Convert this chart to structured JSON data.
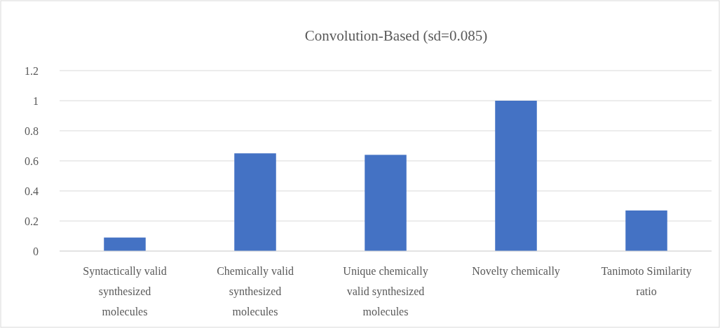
{
  "chart_data": {
    "type": "bar",
    "title": "Convolution-Based (sd=0.085)",
    "categories": [
      "Syntactically valid synthesized molecules",
      "Chemically valid synthesized molecules",
      "Unique chemically valid synthesized molecules",
      "Novelty chemically",
      "Tanimoto Similarity ratio"
    ],
    "values": [
      0.09,
      0.65,
      0.64,
      1,
      0.27
    ],
    "color": "#4472c4",
    "ylim": [
      0,
      1.2
    ],
    "yticks": [
      0,
      0.2,
      0.4,
      0.6,
      0.8,
      1,
      1.2
    ],
    "grid": "y"
  }
}
